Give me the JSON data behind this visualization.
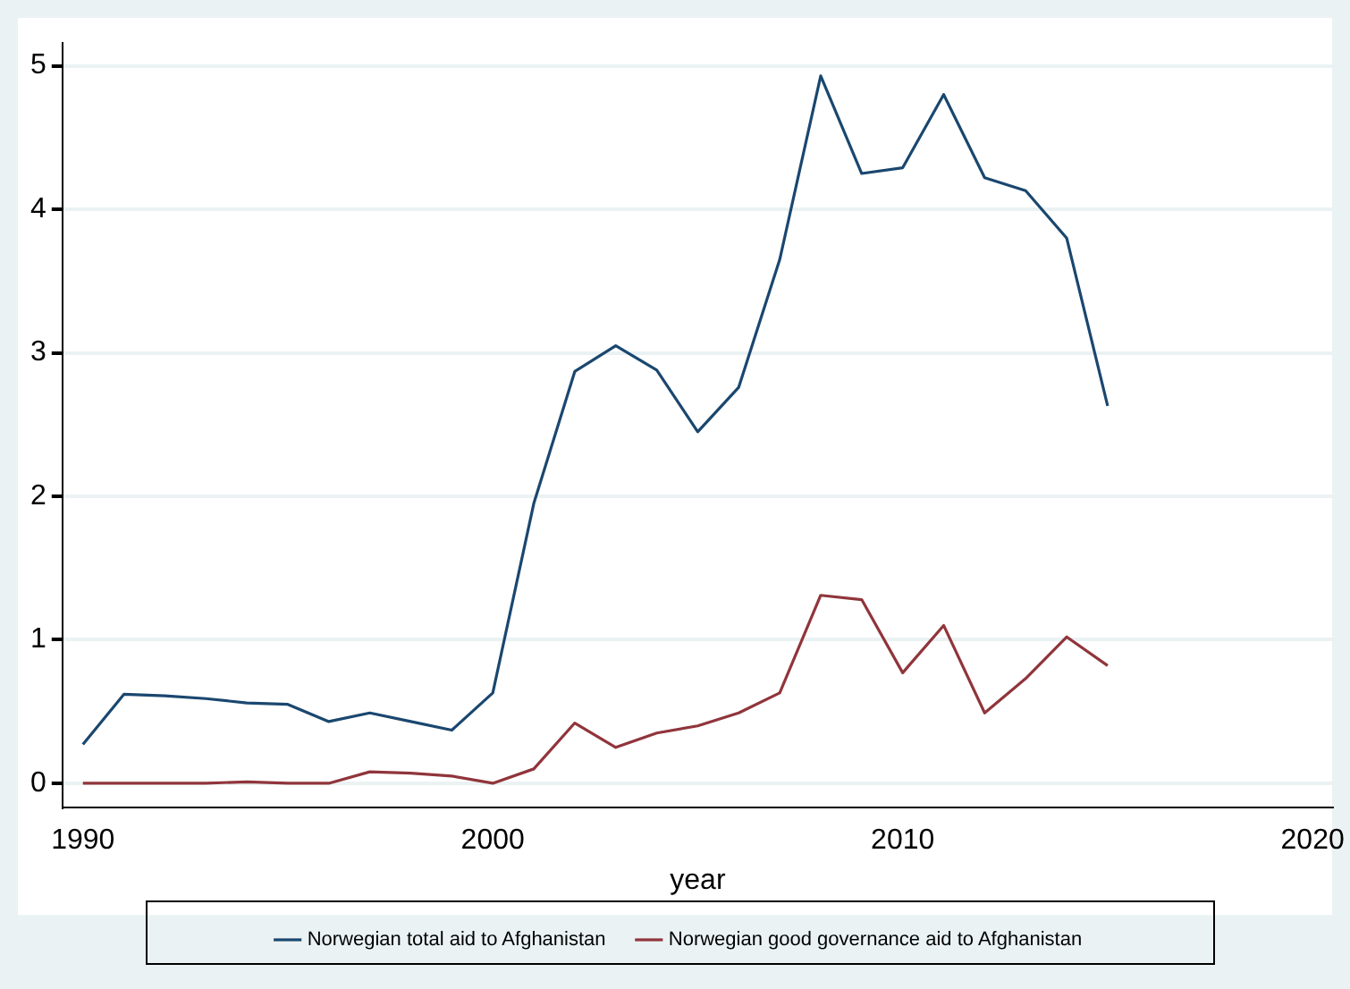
{
  "chart_data": {
    "type": "line",
    "xlabel": "year",
    "x": [
      1990,
      1991,
      1992,
      1993,
      1994,
      1995,
      1996,
      1997,
      1998,
      1999,
      2000,
      2001,
      2002,
      2003,
      2004,
      2005,
      2006,
      2007,
      2008,
      2009,
      2010,
      2011,
      2012,
      2013,
      2014,
      2015
    ],
    "series": [
      {
        "name": "Norwegian total aid to Afghanistan",
        "color": "#1a476f",
        "values": [
          0.27,
          0.62,
          0.61,
          0.59,
          0.56,
          0.55,
          0.43,
          0.49,
          0.43,
          0.37,
          0.63,
          1.95,
          2.87,
          3.05,
          2.88,
          2.45,
          2.76,
          3.65,
          4.93,
          4.25,
          4.29,
          4.8,
          4.22,
          4.13,
          3.8,
          2.63
        ]
      },
      {
        "name": "Norwegian good governance aid to Afghanistan",
        "color": "#90353b",
        "values": [
          0,
          0,
          0,
          0,
          0.01,
          0,
          0,
          0.08,
          0.07,
          0.05,
          0,
          0.1,
          0.42,
          0.25,
          0.35,
          0.4,
          0.49,
          0.63,
          1.31,
          1.28,
          0.77,
          1.1,
          0.49,
          0.73,
          1.02,
          0.82
        ]
      }
    ],
    "xlim": [
      1989.5,
      2020.5
    ],
    "xticks": [
      1990,
      2000,
      2010,
      2020
    ],
    "ylim": [
      -0.17,
      5.16
    ],
    "yticks": [
      0,
      1,
      2,
      3,
      4,
      5
    ],
    "grid": "y",
    "legend": "bottom",
    "marker": "none",
    "line_style": "solid"
  }
}
